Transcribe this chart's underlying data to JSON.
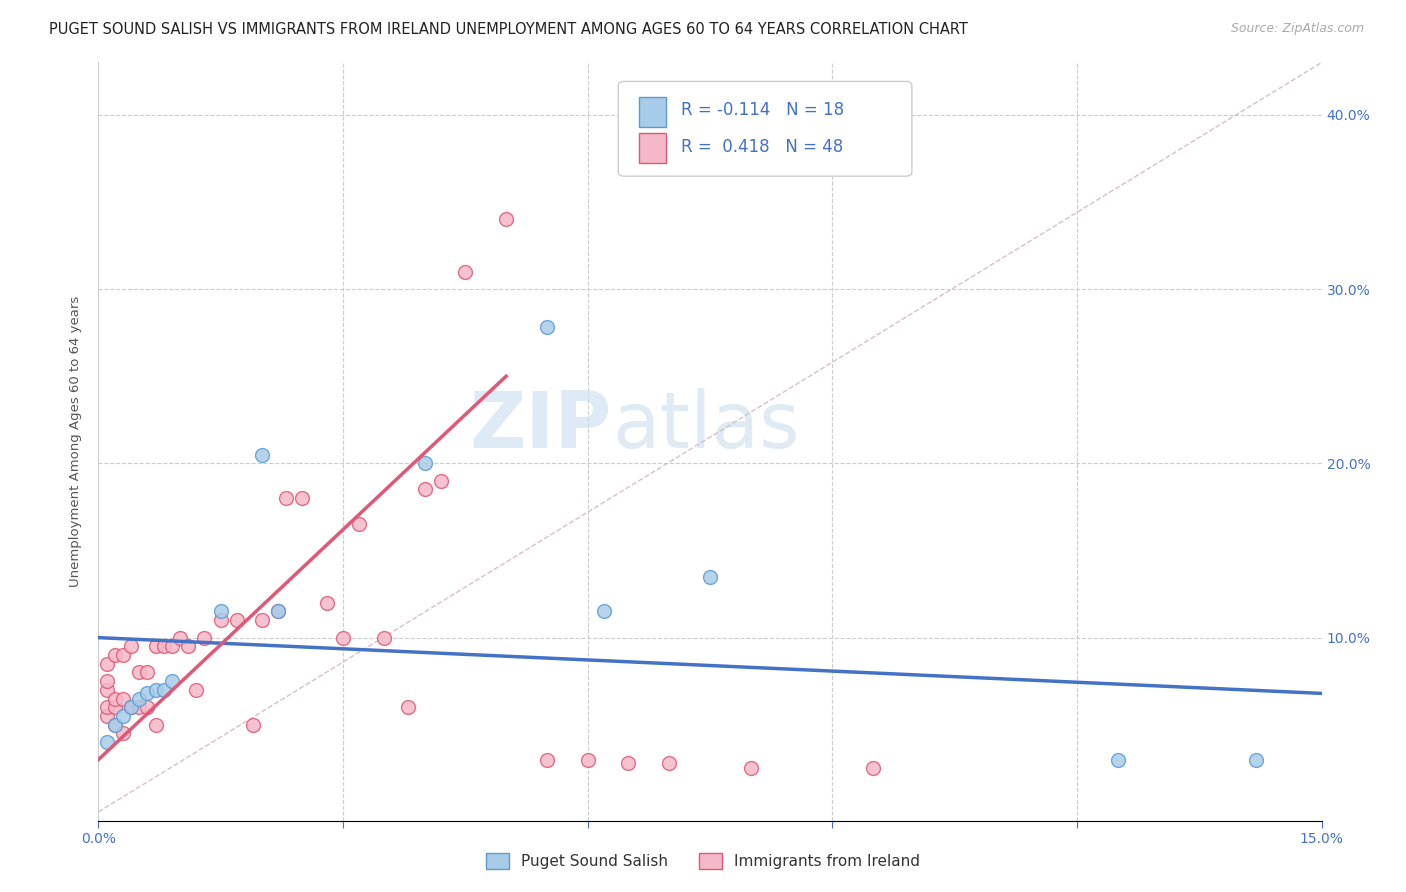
{
  "title": "PUGET SOUND SALISH VS IMMIGRANTS FROM IRELAND UNEMPLOYMENT AMONG AGES 60 TO 64 YEARS CORRELATION CHART",
  "source": "Source: ZipAtlas.com",
  "ylabel": "Unemployment Among Ages 60 to 64 years",
  "xlim": [
    0.0,
    0.15
  ],
  "ylim": [
    -0.005,
    0.43
  ],
  "background_color": "#ffffff",
  "watermark_zip": "ZIP",
  "watermark_atlas": "atlas",
  "color_salish": "#a8cce8",
  "color_salish_edge": "#5b9bd5",
  "color_salish_line": "#4472c4",
  "color_ireland": "#f4b8c8",
  "color_ireland_edge": "#e05878",
  "color_ireland_line": "#e05878",
  "color_diagonal": "#d0b0b8",
  "puget_x": [
    0.001,
    0.002,
    0.003,
    0.004,
    0.005,
    0.006,
    0.007,
    0.008,
    0.009,
    0.015,
    0.02,
    0.022,
    0.04,
    0.055,
    0.062,
    0.075,
    0.125,
    0.142
  ],
  "puget_y": [
    0.04,
    0.05,
    0.055,
    0.06,
    0.065,
    0.068,
    0.07,
    0.07,
    0.075,
    0.115,
    0.205,
    0.115,
    0.2,
    0.278,
    0.115,
    0.135,
    0.03,
    0.03
  ],
  "ireland_x": [
    0.001,
    0.001,
    0.001,
    0.001,
    0.001,
    0.002,
    0.002,
    0.002,
    0.002,
    0.003,
    0.003,
    0.003,
    0.004,
    0.004,
    0.005,
    0.005,
    0.006,
    0.006,
    0.007,
    0.007,
    0.008,
    0.009,
    0.01,
    0.011,
    0.012,
    0.013,
    0.015,
    0.017,
    0.019,
    0.02,
    0.022,
    0.023,
    0.025,
    0.028,
    0.03,
    0.032,
    0.035,
    0.038,
    0.04,
    0.042,
    0.045,
    0.05,
    0.055,
    0.06,
    0.065,
    0.07,
    0.08,
    0.095
  ],
  "ireland_y": [
    0.055,
    0.06,
    0.07,
    0.075,
    0.085,
    0.05,
    0.06,
    0.065,
    0.09,
    0.045,
    0.065,
    0.09,
    0.06,
    0.095,
    0.06,
    0.08,
    0.06,
    0.08,
    0.05,
    0.095,
    0.095,
    0.095,
    0.1,
    0.095,
    0.07,
    0.1,
    0.11,
    0.11,
    0.05,
    0.11,
    0.115,
    0.18,
    0.18,
    0.12,
    0.1,
    0.165,
    0.1,
    0.06,
    0.185,
    0.19,
    0.31,
    0.34,
    0.03,
    0.03,
    0.028,
    0.028,
    0.025,
    0.025
  ],
  "title_fontsize": 10.5,
  "axis_label_fontsize": 9.5,
  "tick_fontsize": 10,
  "legend_fontsize": 12,
  "marker_size": 100
}
